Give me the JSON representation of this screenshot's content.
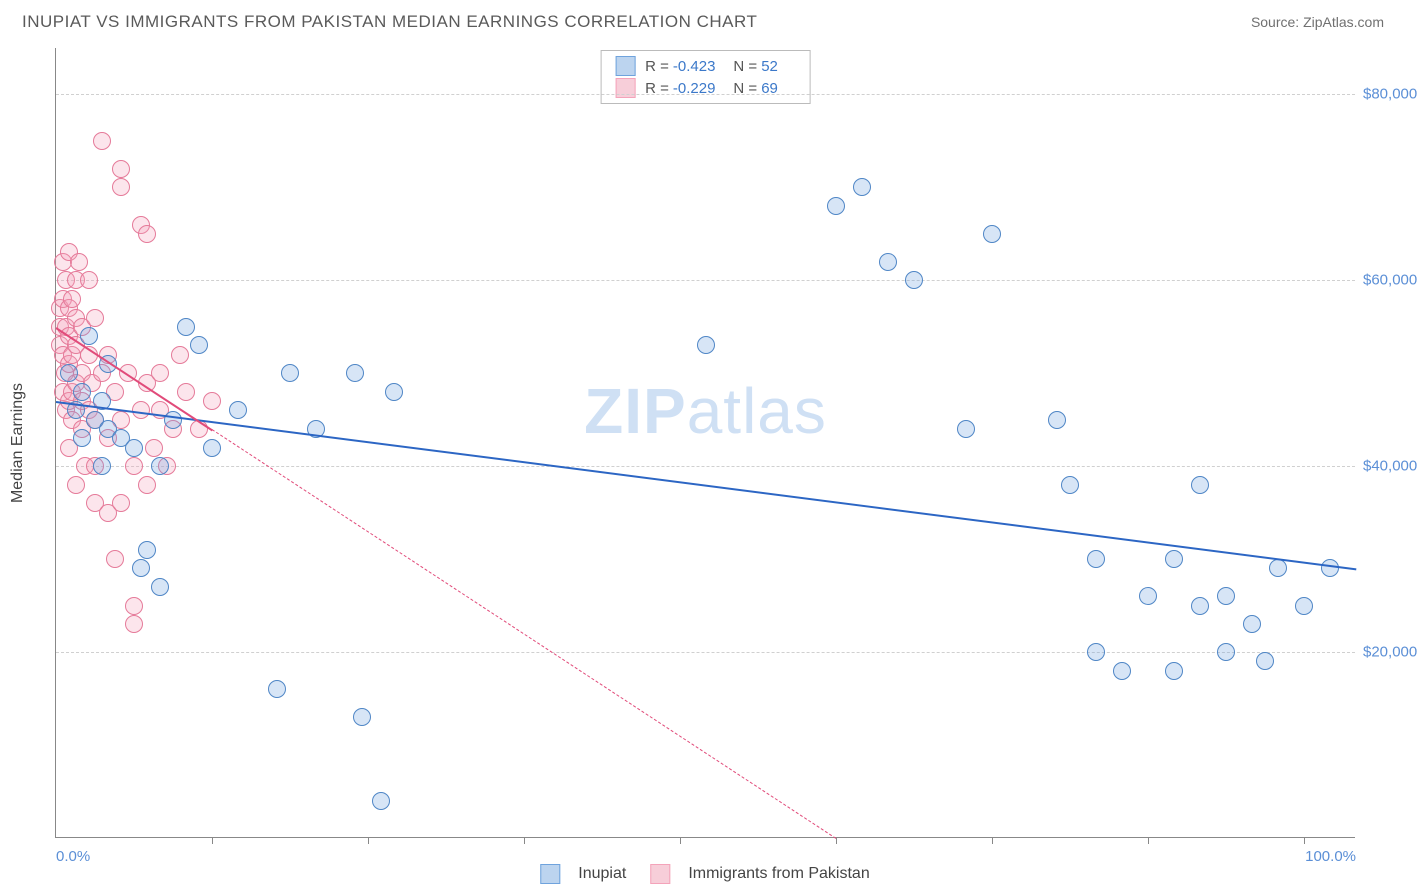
{
  "title": "INUPIAT VS IMMIGRANTS FROM PAKISTAN MEDIAN EARNINGS CORRELATION CHART",
  "source_label": "Source: ZipAtlas.com",
  "watermark": {
    "bold": "ZIP",
    "light": "atlas"
  },
  "y_axis_label": "Median Earnings",
  "chart": {
    "type": "scatter",
    "background_color": "#ffffff",
    "grid_color": "#d0d0d0",
    "axis_color": "#888888",
    "xlim": [
      0,
      100
    ],
    "ylim": [
      0,
      85000
    ],
    "y_ticks": [
      {
        "v": 20000,
        "label": "$20,000"
      },
      {
        "v": 40000,
        "label": "$40,000"
      },
      {
        "v": 60000,
        "label": "$60,000"
      },
      {
        "v": 80000,
        "label": "$80,000"
      }
    ],
    "x_ticks": [
      12,
      24,
      36,
      48,
      60,
      72,
      84,
      96
    ],
    "x_labels": [
      {
        "v": 0,
        "label": "0.0%"
      },
      {
        "v": 100,
        "label": "100.0%"
      }
    ],
    "tick_label_color": "#5b8fd6",
    "marker_radius": 9,
    "marker_border_width": 1.5,
    "marker_fill_opacity": 0.28,
    "trend_line_width": 2
  },
  "series": [
    {
      "name": "Inupiat",
      "color": "#6fa3dd",
      "border_color": "#4f86c6",
      "trend_color": "#2c66c4",
      "r": "-0.423",
      "n": "52",
      "trend": {
        "x1": 0,
        "y1": 47000,
        "x2": 100,
        "y2": 29000,
        "solid_until_x": 100
      },
      "points": [
        [
          1,
          50000
        ],
        [
          1.5,
          46000
        ],
        [
          2,
          48000
        ],
        [
          2,
          43000
        ],
        [
          2.5,
          54000
        ],
        [
          3,
          45000
        ],
        [
          3.5,
          47000
        ],
        [
          3.5,
          40000
        ],
        [
          4,
          44000
        ],
        [
          4,
          51000
        ],
        [
          5,
          43000
        ],
        [
          6,
          42000
        ],
        [
          6.5,
          29000
        ],
        [
          7,
          31000
        ],
        [
          8,
          27000
        ],
        [
          8,
          40000
        ],
        [
          9,
          45000
        ],
        [
          10,
          55000
        ],
        [
          11,
          53000
        ],
        [
          12,
          42000
        ],
        [
          14,
          46000
        ],
        [
          17,
          16000
        ],
        [
          18,
          50000
        ],
        [
          20,
          44000
        ],
        [
          23,
          50000
        ],
        [
          23.5,
          13000
        ],
        [
          25,
          4000
        ],
        [
          26,
          48000
        ],
        [
          50,
          53000
        ],
        [
          60,
          68000
        ],
        [
          62,
          70000
        ],
        [
          64,
          62000
        ],
        [
          66,
          60000
        ],
        [
          70,
          44000
        ],
        [
          72,
          65000
        ],
        [
          77,
          45000
        ],
        [
          78,
          38000
        ],
        [
          80,
          20000
        ],
        [
          80,
          30000
        ],
        [
          82,
          18000
        ],
        [
          84,
          26000
        ],
        [
          86,
          18000
        ],
        [
          86,
          30000
        ],
        [
          88,
          25000
        ],
        [
          88,
          38000
        ],
        [
          90,
          20000
        ],
        [
          90,
          26000
        ],
        [
          92,
          23000
        ],
        [
          93,
          19000
        ],
        [
          94,
          29000
        ],
        [
          96,
          25000
        ],
        [
          98,
          29000
        ]
      ]
    },
    {
      "name": "Immigrants from Pakistan",
      "color": "#f4a3ba",
      "border_color": "#e57a99",
      "trend_color": "#e14b7a",
      "r": "-0.229",
      "n": "69",
      "trend": {
        "x1": 0,
        "y1": 55000,
        "x2": 60,
        "y2": 0,
        "solid_until_x": 12
      },
      "points": [
        [
          0.3,
          53000
        ],
        [
          0.3,
          55000
        ],
        [
          0.3,
          57000
        ],
        [
          0.5,
          48000
        ],
        [
          0.5,
          58000
        ],
        [
          0.5,
          52000
        ],
        [
          0.5,
          62000
        ],
        [
          0.7,
          50000
        ],
        [
          0.8,
          46000
        ],
        [
          0.8,
          55000
        ],
        [
          0.8,
          60000
        ],
        [
          1.0,
          42000
        ],
        [
          1.0,
          47000
        ],
        [
          1.0,
          51000
        ],
        [
          1.0,
          54000
        ],
        [
          1.0,
          57000
        ],
        [
          1.0,
          63000
        ],
        [
          1.2,
          45000
        ],
        [
          1.2,
          48000
        ],
        [
          1.2,
          52000
        ],
        [
          1.2,
          58000
        ],
        [
          1.5,
          38000
        ],
        [
          1.5,
          49000
        ],
        [
          1.5,
          53000
        ],
        [
          1.5,
          56000
        ],
        [
          1.5,
          60000
        ],
        [
          1.8,
          62000
        ],
        [
          2.0,
          44000
        ],
        [
          2.0,
          47000
        ],
        [
          2.0,
          50000
        ],
        [
          2.0,
          55000
        ],
        [
          2.2,
          40000
        ],
        [
          2.5,
          46000
        ],
        [
          2.5,
          52000
        ],
        [
          2.5,
          60000
        ],
        [
          2.8,
          49000
        ],
        [
          3.0,
          36000
        ],
        [
          3.0,
          45000
        ],
        [
          3.0,
          56000
        ],
        [
          3.0,
          40000
        ],
        [
          3.5,
          50000
        ],
        [
          3.5,
          75000
        ],
        [
          4.0,
          43000
        ],
        [
          4.0,
          35000
        ],
        [
          4.0,
          52000
        ],
        [
          4.5,
          48000
        ],
        [
          4.5,
          30000
        ],
        [
          5.0,
          72000
        ],
        [
          5.0,
          70000
        ],
        [
          5.0,
          45000
        ],
        [
          5.0,
          36000
        ],
        [
          5.5,
          50000
        ],
        [
          6.0,
          40000
        ],
        [
          6.0,
          25000
        ],
        [
          6.0,
          23000
        ],
        [
          6.5,
          46000
        ],
        [
          6.5,
          66000
        ],
        [
          7.0,
          38000
        ],
        [
          7.0,
          49000
        ],
        [
          7.0,
          65000
        ],
        [
          7.5,
          42000
        ],
        [
          8.0,
          46000
        ],
        [
          8.0,
          50000
        ],
        [
          8.5,
          40000
        ],
        [
          9.0,
          44000
        ],
        [
          9.5,
          52000
        ],
        [
          10,
          48000
        ],
        [
          11,
          44000
        ],
        [
          12,
          47000
        ]
      ]
    }
  ],
  "bottom_legend": [
    {
      "label": "Inupiat",
      "swatch_fill": "#bcd4ef",
      "swatch_border": "#6fa3dd"
    },
    {
      "label": "Immigrants from Pakistan",
      "swatch_fill": "#f7ced9",
      "swatch_border": "#f4a3ba"
    }
  ],
  "stats_swatches": [
    {
      "fill": "#bcd4ef",
      "border": "#6fa3dd"
    },
    {
      "fill": "#f7ced9",
      "border": "#f4a3ba"
    }
  ]
}
